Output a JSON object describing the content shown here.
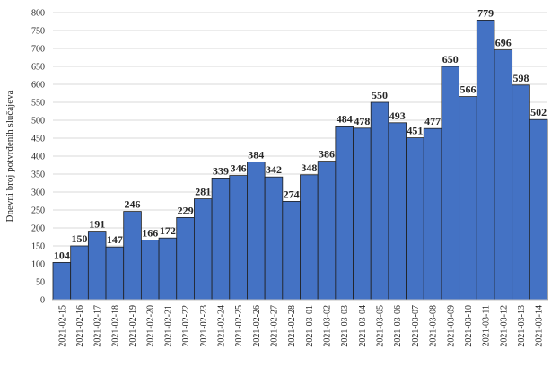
{
  "chart_data": {
    "type": "bar",
    "title": "",
    "xlabel": "",
    "ylabel": "Dnevni broj potvrđenih slučajeva",
    "ylim": [
      0,
      800
    ],
    "yticks": [
      0,
      50,
      100,
      150,
      200,
      250,
      300,
      350,
      400,
      450,
      500,
      550,
      600,
      650,
      700,
      750,
      800
    ],
    "grid": true,
    "colors": {
      "bar": "#4472c4",
      "bar_edge": "#1f1f1f",
      "grid": "#d9d9d9"
    },
    "categories": [
      "2021-02-15",
      "2021-02-16",
      "2021-02-17",
      "2021-02-18",
      "2021-02-19",
      "2021-02-20",
      "2021-02-21",
      "2021-02-22",
      "2021-02-23",
      "2021-02-24",
      "2021-02-25",
      "2021-02-26",
      "2021-02-27",
      "2021-02-28",
      "2021-03-01",
      "2021-03-02",
      "2021-03-03",
      "2021-03-04",
      "2021-03-05",
      "2021-03-06",
      "2021-03-07",
      "2021-03-08",
      "2021-03-09",
      "2021-03-10",
      "2021-03-11",
      "2021-03-12",
      "2021-03-13",
      "2021-03-14"
    ],
    "values": [
      104,
      150,
      191,
      147,
      246,
      166,
      172,
      229,
      281,
      339,
      346,
      384,
      342,
      274,
      348,
      386,
      484,
      478,
      550,
      493,
      451,
      477,
      650,
      566,
      779,
      696,
      598,
      502
    ],
    "data_labels": [
      "104",
      "150",
      "191",
      "147",
      "246",
      "166",
      "172",
      "229",
      "281",
      "339",
      "346",
      "384",
      "342",
      "274",
      "348",
      "386",
      "484",
      "478",
      "550",
      "493",
      "451",
      "477",
      "650",
      "566",
      "779",
      "696",
      "598",
      "502"
    ]
  }
}
